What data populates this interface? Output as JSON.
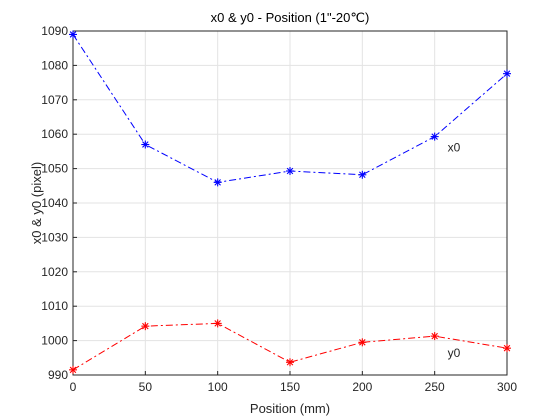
{
  "chart_data": {
    "type": "line",
    "title": "x0 & y0 - Position (1\"-20℃)",
    "xlabel": "Position (mm)",
    "ylabel": "x0 & y0 (pixel)",
    "x": [
      0,
      50,
      100,
      150,
      200,
      250,
      300
    ],
    "xticks": [
      "0",
      "50",
      "100",
      "150",
      "200",
      "250",
      "300"
    ],
    "yticks": [
      "990",
      "1000",
      "1010",
      "1020",
      "1030",
      "1040",
      "1050",
      "1060",
      "1070",
      "1080",
      "1090"
    ],
    "xlim": [
      0,
      300
    ],
    "ylim": [
      990,
      1090
    ],
    "grid": true,
    "series": [
      {
        "name": "x0",
        "color": "#0000ff",
        "marker": "asterisk",
        "line_style": "dash-dot",
        "values": [
          1089,
          1057,
          1046,
          1049.3,
          1048.2,
          1059.3,
          1077.6
        ]
      },
      {
        "name": "y0",
        "color": "#ff0000",
        "marker": "asterisk",
        "line_style": "dash-dot",
        "values": [
          991.5,
          1004.2,
          1005,
          993.7,
          999.5,
          1001.3,
          997.8
        ]
      }
    ]
  }
}
